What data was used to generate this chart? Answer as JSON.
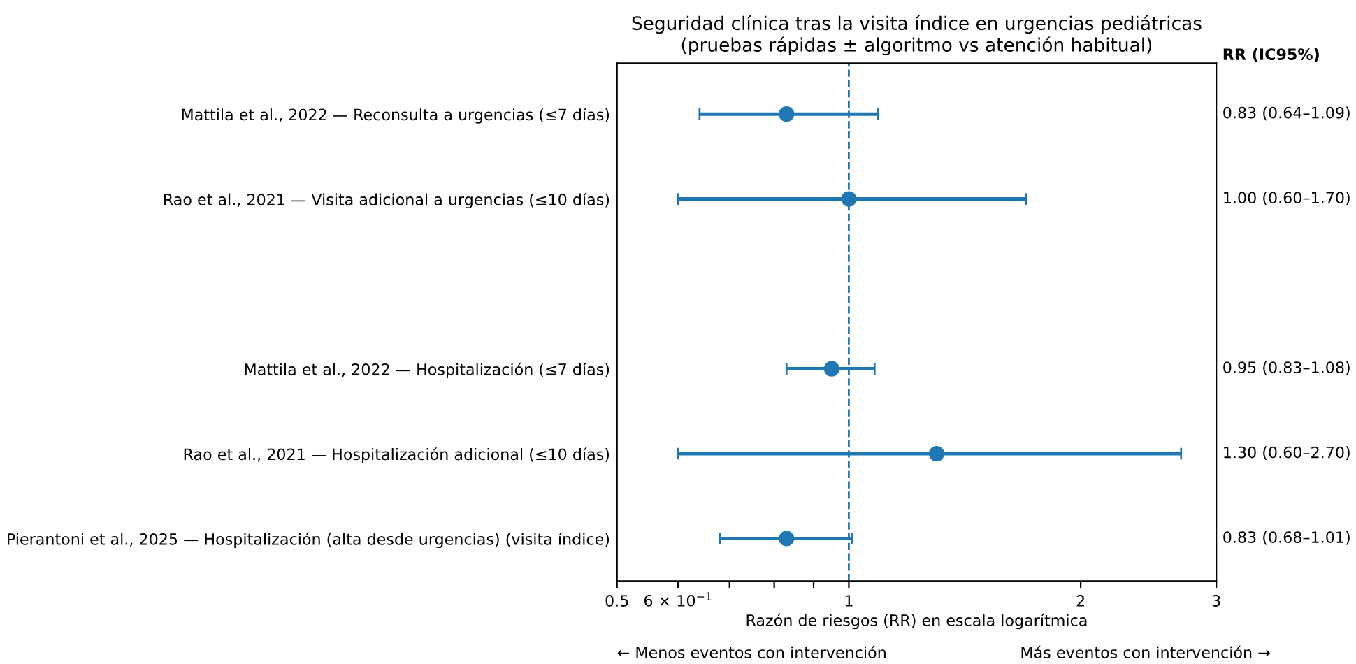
{
  "chart_data": {
    "type": "scatter",
    "orientation": "horizontal",
    "title": "Seguridad clínica tras la visita índice en urgencias pediátricas\n(pruebas rápidas ± algoritmo vs atención habitual)",
    "xlabel": "Razón de riesgos (RR) en escala logarítmica",
    "categories": [
      "Mattila et al., 2022 — Reconsulta a urgencias (≤7 días)",
      "Rao et al., 2021 — Visita adicional a urgencias (≤10 días)",
      null,
      "Mattila et al., 2022 — Hospitalización (≤7 días)",
      "Rao et al., 2021 — Hospitalización adicional (≤10 días)",
      "Pierantoni et al., 2025 — Hospitalización (alta desde urgencias) (visita índice)"
    ],
    "series": [
      {
        "color": "#1f77b4",
        "values": [
          0.83,
          1.0,
          null,
          0.95,
          1.3,
          0.83
        ],
        "errors": [
          [
            0.64,
            1.09
          ],
          [
            0.6,
            1.7
          ],
          null,
          [
            0.83,
            1.08
          ],
          [
            0.6,
            2.7
          ],
          [
            0.68,
            1.01
          ]
        ],
        "value_labels": [
          "0.83 (0.64–1.09)",
          "1.00 (0.60–1.70)",
          null,
          "0.95 (0.83–1.08)",
          "1.30 (0.60–2.70)",
          "0.83 (0.68–1.01)"
        ]
      }
    ],
    "log": "x",
    "xlim": [
      0.5,
      3
    ],
    "xticks": [
      0.5,
      {
        "value": 0.6,
        "label": "6 × 10$^{−1}$"
      },
      {
        "value": 0.7,
        "label": null
      },
      {
        "value": 0.8,
        "label": null
      },
      {
        "value": 0.9,
        "label": null
      },
      1,
      2,
      3
    ],
    "ref_lines": [
      {
        "axis": "x",
        "value": 1,
        "color": "#1f77b4",
        "line_style": "dashed"
      }
    ],
    "annotations": [
      "RR (IC95%)",
      "← Menos eventos con intervención",
      "Más eventos con intervención →"
    ],
    "marker": "circle",
    "grid": false,
    "legend": false
  }
}
